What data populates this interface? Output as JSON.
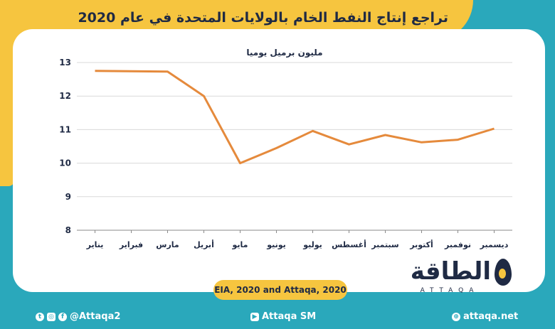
{
  "title": "تراجع إنتاج النفط الخام بالولايات المتحدة في عام 2020",
  "source": "EIA, 2020 and Attaqa, 2020",
  "footer": {
    "social": "@Attaqa2",
    "youtube": "Attaqa SM",
    "website": "attaqa.net"
  },
  "logo": {
    "name": "الطاقة",
    "latin": "ATTAQA"
  },
  "colors": {
    "accent": "#f6c53f",
    "background": "#2aa8bb",
    "line": "#e58a3c",
    "text": "#1f2a44"
  },
  "chart_data": {
    "type": "line",
    "title": "",
    "ylabel": "مليون برميل يوميا",
    "xlabel": "",
    "categories": [
      "يناير",
      "فبراير",
      "مارس",
      "أبريل",
      "مايو",
      "يونيو",
      "يوليو",
      "أغسطس",
      "سبتمبر",
      "أكتوبر",
      "نوفمبر",
      "ديسمبر"
    ],
    "values": [
      12.75,
      12.74,
      12.73,
      12.0,
      10.0,
      10.45,
      10.96,
      10.56,
      10.84,
      10.62,
      10.7,
      11.03
    ],
    "ylim": [
      8,
      13
    ],
    "yticks": [
      8,
      9,
      10,
      11,
      12,
      13
    ],
    "grid": true,
    "legend": "none"
  }
}
